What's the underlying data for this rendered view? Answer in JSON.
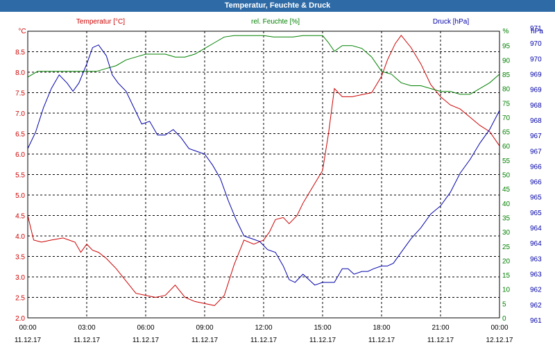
{
  "window": {
    "title": "Temperatur, Feuchte & Druck"
  },
  "colors": {
    "temperature": "#cc0000",
    "humidity": "#008000",
    "pressure": "#0000aa",
    "title_bar": "#2e6aa6",
    "grid": "#000000",
    "text": "#000000"
  },
  "chart_data": {
    "type": "line",
    "title": "Temperatur, Feuchte & Druck",
    "grid": true,
    "x_ticks": [
      {
        "time": "00:00",
        "date": "11.12.17"
      },
      {
        "time": "03:00",
        "date": "11.12.17"
      },
      {
        "time": "06:00",
        "date": "11.12.17"
      },
      {
        "time": "09:00",
        "date": "11.12.17"
      },
      {
        "time": "12:00",
        "date": "11.12.17"
      },
      {
        "time": "15:00",
        "date": "11.12.17"
      },
      {
        "time": "18:00",
        "date": "11.12.17"
      },
      {
        "time": "21:00",
        "date": "11.12.17"
      },
      {
        "time": "00:00",
        "date": "12.12.17"
      }
    ],
    "axes": {
      "temperature": {
        "label": "Temperatur [°C]",
        "unit": "°C",
        "ylim": [
          2.0,
          9.0
        ],
        "ticks": [
          "2.0",
          "2.5",
          "3.0",
          "3.5",
          "4.0",
          "4.5",
          "5.0",
          "5.5",
          "6.0",
          "6.5",
          "7.0",
          "7.5",
          "8.0",
          "8.5"
        ]
      },
      "humidity": {
        "label": "rel. Feuchte [%]",
        "unit": "%",
        "ylim": [
          0,
          100
        ],
        "ticks": [
          "0",
          "5",
          "10",
          "15",
          "20",
          "25",
          "30",
          "35",
          "40",
          "45",
          "50",
          "55",
          "60",
          "65",
          "70",
          "75",
          "80",
          "85",
          "90",
          "95"
        ]
      },
      "pressure": {
        "label": "Druck [hPa]",
        "unit": "hPa",
        "ylim": [
          961.0,
          971.5
        ],
        "ticks": [
          "961",
          "962",
          "962",
          "963",
          "963",
          "964",
          "964",
          "965",
          "965",
          "966",
          "966",
          "967",
          "967",
          "968",
          "968",
          "969",
          "969",
          "970",
          "970",
          "971"
        ]
      }
    },
    "series": [
      {
        "name": "Temperatur [°C]",
        "axis": "temperature",
        "x": [
          0,
          0.3,
          0.7,
          1.2,
          1.8,
          2.4,
          2.7,
          3.0,
          3.3,
          3.6,
          4.0,
          4.5,
          5.0,
          5.5,
          6.0,
          6.5,
          7.0,
          7.5,
          8.0,
          8.5,
          9.0,
          9.5,
          10.0,
          10.5,
          11.0,
          11.5,
          12.0,
          12.3,
          12.6,
          13.0,
          13.3,
          13.7,
          14.0,
          14.5,
          15.0,
          15.3,
          15.6,
          16.0,
          16.5,
          17.0,
          17.5,
          18.0,
          18.3,
          18.7,
          19.0,
          19.5,
          20.0,
          20.5,
          21.0,
          21.5,
          22.0,
          22.5,
          23.0,
          23.5,
          24.0
        ],
        "y": [
          4.5,
          3.9,
          3.85,
          3.9,
          3.95,
          3.85,
          3.6,
          3.8,
          3.65,
          3.6,
          3.45,
          3.2,
          2.9,
          2.6,
          2.55,
          2.5,
          2.55,
          2.8,
          2.5,
          2.4,
          2.35,
          2.3,
          2.55,
          3.3,
          3.9,
          3.8,
          3.9,
          4.1,
          4.4,
          4.45,
          4.3,
          4.5,
          4.8,
          5.2,
          5.6,
          6.5,
          7.6,
          7.4,
          7.4,
          7.45,
          7.5,
          7.9,
          8.3,
          8.7,
          8.9,
          8.6,
          8.2,
          7.7,
          7.4,
          7.2,
          7.1,
          6.9,
          6.7,
          6.55,
          6.2
        ]
      },
      {
        "name": "rel. Feuchte [%]",
        "axis": "humidity",
        "x": [
          0,
          0.5,
          1.0,
          1.5,
          2.0,
          2.5,
          3.0,
          3.5,
          4.0,
          4.5,
          5.0,
          5.5,
          6.0,
          6.5,
          7.0,
          7.5,
          8.0,
          8.5,
          9.0,
          9.5,
          10.0,
          10.5,
          11.0,
          11.5,
          12.0,
          12.5,
          13.0,
          13.5,
          14.0,
          14.5,
          15.0,
          15.3,
          15.6,
          16.0,
          16.5,
          17.0,
          17.5,
          18.0,
          18.5,
          19.0,
          19.5,
          20.0,
          20.5,
          21.0,
          21.5,
          22.0,
          22.5,
          23.0,
          23.5,
          24.0
        ],
        "y": [
          84,
          86,
          86,
          86,
          86,
          86,
          86,
          86,
          87,
          88,
          90,
          91,
          92,
          92,
          92,
          91,
          91,
          92,
          94,
          96,
          98,
          98.5,
          98.5,
          98.5,
          98.5,
          98,
          98,
          98,
          98.5,
          98.5,
          98.5,
          96,
          93,
          95,
          95,
          94,
          91,
          86,
          85,
          82,
          81,
          81,
          80,
          79,
          79,
          78,
          78,
          80,
          82,
          85
        ]
      },
      {
        "name": "Druck [hPa]",
        "axis": "pressure",
        "x": [
          0,
          0.4,
          0.8,
          1.2,
          1.6,
          2.0,
          2.3,
          2.6,
          3.0,
          3.3,
          3.6,
          4.0,
          4.3,
          4.6,
          5.0,
          5.4,
          5.8,
          6.2,
          6.6,
          7.0,
          7.4,
          7.8,
          8.2,
          8.6,
          9.0,
          9.4,
          9.8,
          10.2,
          10.6,
          11.0,
          11.4,
          11.8,
          12.2,
          12.6,
          13.0,
          13.3,
          13.6,
          14.0,
          14.3,
          14.6,
          15.0,
          15.3,
          15.6,
          16.0,
          16.3,
          16.6,
          17.0,
          17.3,
          17.6,
          18.0,
          18.3,
          18.6,
          19.0,
          19.5,
          20.0,
          20.5,
          21.0,
          21.5,
          22.0,
          22.5,
          23.0,
          23.5,
          24.0
        ],
        "y": [
          967.2,
          967.8,
          968.7,
          969.4,
          969.9,
          969.6,
          969.3,
          969.6,
          970.3,
          970.9,
          971.0,
          970.6,
          969.9,
          969.6,
          969.3,
          968.7,
          968.1,
          968.2,
          967.7,
          967.7,
          967.9,
          967.6,
          967.2,
          967.1,
          967.0,
          966.6,
          966.1,
          965.3,
          964.6,
          964.0,
          963.9,
          963.8,
          963.5,
          963.4,
          962.9,
          962.4,
          962.3,
          962.6,
          962.4,
          962.2,
          962.3,
          962.3,
          962.3,
          962.8,
          962.8,
          962.6,
          962.7,
          962.7,
          962.8,
          962.9,
          962.9,
          963.0,
          963.4,
          963.9,
          964.3,
          964.8,
          965.1,
          965.6,
          966.3,
          966.8,
          967.4,
          967.9,
          968.6
        ]
      }
    ]
  }
}
